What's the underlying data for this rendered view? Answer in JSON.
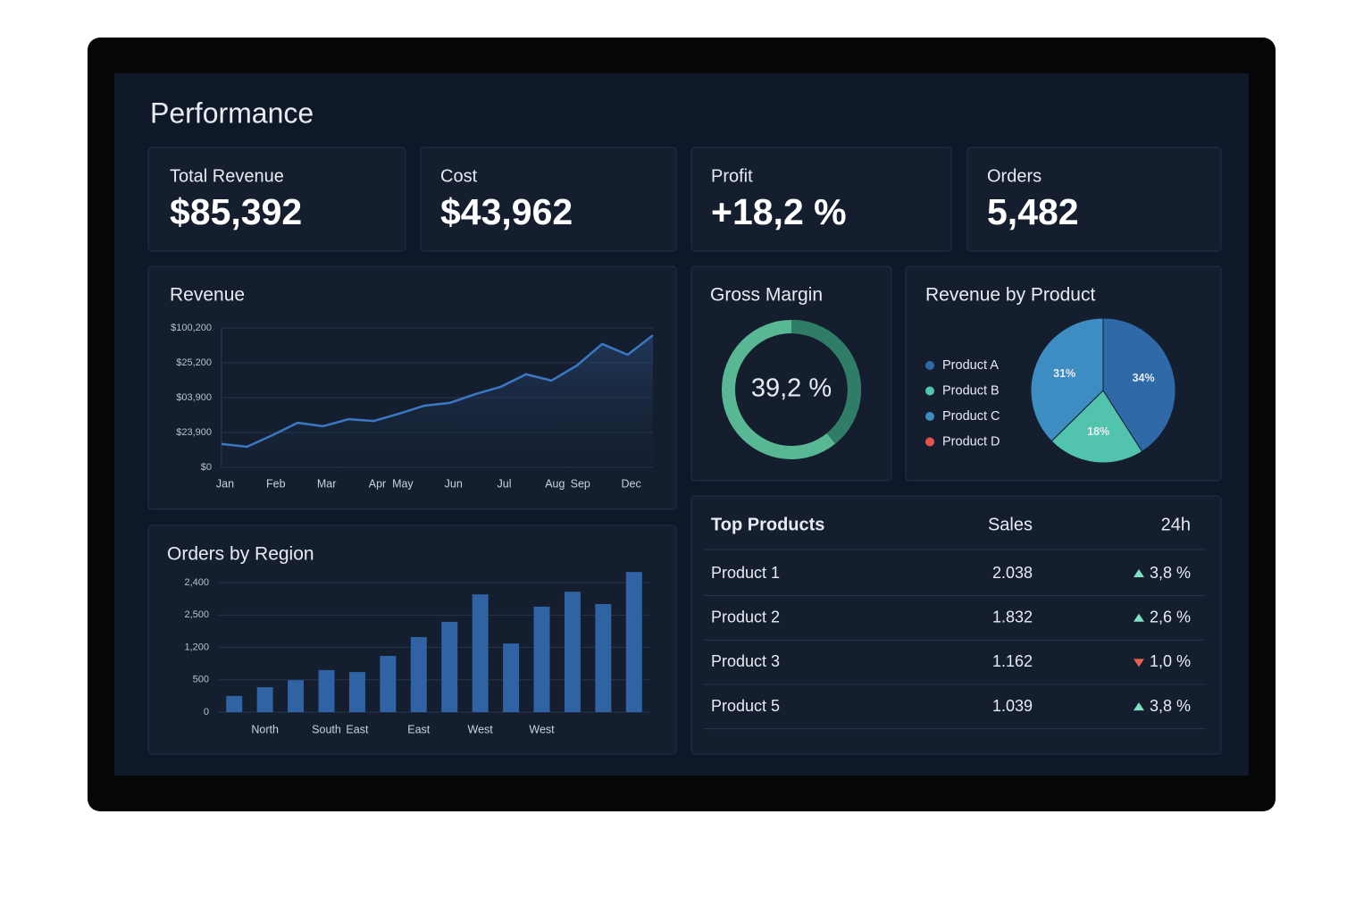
{
  "header": {
    "title": "Performance"
  },
  "kpis": [
    {
      "label": "Total Revenue",
      "value": "$85,392"
    },
    {
      "label": "Cost",
      "value": "$43,962"
    },
    {
      "label": "Profit",
      "value": "+18,2 %",
      "color": "#7fe1c4"
    },
    {
      "label": "Orders",
      "value": "5,482"
    }
  ],
  "chart_data": [
    {
      "type": "line",
      "title": "Revenue",
      "categories": [
        "Jan",
        null,
        "Feb",
        null,
        "Mar",
        null,
        "Apr",
        "May",
        null,
        "Jun",
        null,
        "Jul",
        null,
        "Aug",
        "Sep",
        null,
        "Dec",
        null
      ],
      "values": [
        0.67,
        0.59,
        0.92,
        1.28,
        1.18,
        1.38,
        1.33,
        1.54,
        1.77,
        1.85,
        2.1,
        2.31,
        2.67,
        2.49,
        2.92,
        3.54,
        3.23,
        3.79
      ],
      "color": "#3a78c4",
      "ylim": [
        0,
        4
      ],
      "yticks": [
        {
          "value": 0,
          "label": "$0"
        },
        {
          "value": 1,
          "label": "$23,900"
        },
        {
          "value": 2,
          "label": "$03,900"
        },
        {
          "value": 3,
          "label": "$25,200"
        },
        {
          "value": 4,
          "label": "$100,200"
        }
      ],
      "grid": true
    },
    {
      "type": "bar",
      "title": "Orders by Region",
      "categories": [
        null,
        "North",
        null,
        "South",
        "East",
        null,
        "East",
        null,
        "West",
        null,
        "West",
        null,
        null,
        null
      ],
      "values": [
        0.5,
        0.77,
        0.99,
        1.3,
        1.24,
        1.74,
        2.32,
        2.79,
        3.64,
        2.12,
        3.26,
        3.72,
        3.34,
        4.33
      ],
      "color": "#2f63a3",
      "ylim": [
        0,
        4.5
      ],
      "yticks": [
        {
          "value": 0,
          "label": "0"
        },
        {
          "value": 1,
          "label": "500"
        },
        {
          "value": 2,
          "label": "1,200"
        },
        {
          "value": 3,
          "label": "2,500"
        },
        {
          "value": 4,
          "label": "2,400"
        }
      ],
      "grid": true
    },
    {
      "type": "donut",
      "title": "Gross Margin",
      "values": [
        39.2
      ],
      "value_labels": [
        "39,2 %"
      ],
      "color": "#2f7d66",
      "track_color": "#58b894"
    },
    {
      "type": "pie",
      "title": "Revenue by Product",
      "categories": [
        "Product A",
        "Product B",
        "Product C",
        "Product D"
      ],
      "values": [
        34,
        18,
        31,
        null
      ],
      "value_labels": [
        "34%",
        "18%",
        "31%",
        null
      ],
      "colors": [
        "#3069a8",
        "#52c4ad",
        "#3e8dc2",
        "#e5534b"
      ]
    }
  ],
  "table": {
    "columns": [
      "Top Products",
      "Sales",
      "24h"
    ],
    "rows": [
      {
        "name": "Product 1",
        "sales": "2.038",
        "change": "3,8 %",
        "trend": "up"
      },
      {
        "name": "Product 2",
        "sales": "1.832",
        "change": "2,6 %",
        "trend": "up"
      },
      {
        "name": "Product 3",
        "sales": "1.162",
        "change": "1,0 %",
        "trend": "down"
      },
      {
        "name": "Product 5",
        "sales": "1.039",
        "change": "3,8 %",
        "trend": "up"
      }
    ],
    "up_color": "#7fe1c4",
    "down_color": "#e8604f"
  }
}
